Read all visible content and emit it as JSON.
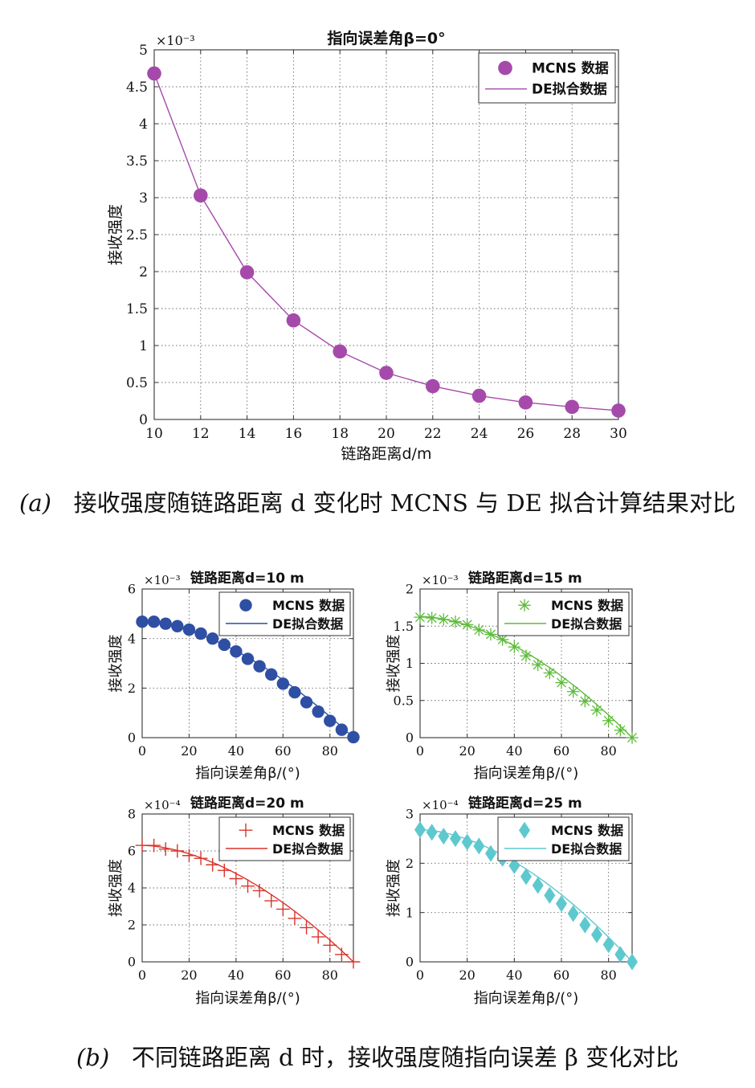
{
  "caption_a": {
    "label": "(a)",
    "text": "接收强度随链路距离 d 变化时 MCNS 与 DE 拟合计算结果对比"
  },
  "caption_b": {
    "label": "(b)",
    "text": "不同链路距离 d 时，接收强度随指向误差 β 变化对比"
  },
  "chart_data": [
    {
      "type": "line",
      "title": "指向误差角β=0°",
      "xlabel": "链路距离d/m",
      "ylabel": "接收强度",
      "exponent_label": "×10⁻³",
      "xlim": [
        10,
        30
      ],
      "ylim": [
        0,
        5
      ],
      "xticks": [
        10,
        12,
        14,
        16,
        18,
        20,
        22,
        24,
        26,
        28,
        30
      ],
      "yticks": [
        0,
        0.5,
        1,
        1.5,
        2,
        2.5,
        3,
        3.5,
        4,
        4.5,
        5
      ],
      "grid": true,
      "legend_position": "top-right",
      "color": "#a54aaa",
      "series": [
        {
          "name": "MCNS 数据",
          "marker": "dot",
          "x": [
            10,
            12,
            14,
            16,
            18,
            20,
            22,
            24,
            26,
            28,
            30
          ],
          "y": [
            4.68,
            3.03,
            1.99,
            1.34,
            0.92,
            0.63,
            0.45,
            0.32,
            0.23,
            0.17,
            0.12
          ]
        },
        {
          "name": "DE拟合数据",
          "marker": "line",
          "x": [
            10,
            12,
            14,
            16,
            18,
            20,
            22,
            24,
            26,
            28,
            30
          ],
          "y": [
            4.68,
            3.03,
            1.99,
            1.34,
            0.92,
            0.63,
            0.45,
            0.32,
            0.23,
            0.17,
            0.12
          ]
        }
      ]
    },
    {
      "type": "line",
      "title": "链路距离d=10 m",
      "xlabel": "指向误差角β/(°)",
      "ylabel": "接收强度",
      "exponent_label": "×10⁻³",
      "xlim": [
        0,
        90
      ],
      "ylim": [
        0,
        6
      ],
      "xticks": [
        0,
        20,
        40,
        60,
        80
      ],
      "yticks": [
        0,
        2,
        4,
        6
      ],
      "grid": true,
      "legend_position": "top-right",
      "color": "#2e4fa3",
      "series": [
        {
          "name": "MCNS 数据",
          "marker": "dot",
          "x": [
            0,
            5,
            10,
            15,
            20,
            25,
            30,
            35,
            40,
            45,
            50,
            55,
            60,
            65,
            70,
            75,
            80,
            85,
            90
          ],
          "y": [
            4.68,
            4.68,
            4.6,
            4.5,
            4.36,
            4.2,
            4.0,
            3.75,
            3.48,
            3.18,
            2.88,
            2.55,
            2.18,
            1.83,
            1.43,
            1.05,
            0.68,
            0.32,
            0.02
          ]
        },
        {
          "name": "DE拟合数据",
          "marker": "line",
          "curve": {
            "a": 4.68,
            "p": 1.7
          }
        }
      ]
    },
    {
      "type": "line",
      "title": "链路距离d=15 m",
      "xlabel": "指向误差角β/(°)",
      "ylabel": "接收强度",
      "exponent_label": "×10⁻³",
      "xlim": [
        0,
        90
      ],
      "ylim": [
        0,
        2
      ],
      "xticks": [
        0,
        20,
        40,
        60,
        80
      ],
      "yticks": [
        0,
        0.5,
        1,
        1.5,
        2
      ],
      "grid": true,
      "legend_position": "top-right",
      "color": "#5dbb3a",
      "series": [
        {
          "name": "MCNS 数据",
          "marker": "star",
          "x": [
            0,
            5,
            10,
            15,
            20,
            25,
            30,
            35,
            40,
            45,
            50,
            55,
            60,
            65,
            70,
            75,
            80,
            85,
            90
          ],
          "y": [
            1.62,
            1.61,
            1.59,
            1.56,
            1.52,
            1.45,
            1.39,
            1.32,
            1.22,
            1.1,
            0.98,
            0.87,
            0.74,
            0.62,
            0.49,
            0.37,
            0.23,
            0.1,
            0.0
          ]
        },
        {
          "name": "DE拟合数据",
          "marker": "line",
          "curve": {
            "a": 1.63,
            "p": 1.75
          }
        }
      ]
    },
    {
      "type": "line",
      "title": "链路距离d=20 m",
      "xlabel": "指向误差角β/(°)",
      "ylabel": "接收强度",
      "exponent_label": "×10⁻⁴",
      "xlim": [
        0,
        90
      ],
      "ylim": [
        0,
        8
      ],
      "xticks": [
        0,
        20,
        40,
        60,
        80
      ],
      "yticks": [
        0,
        2,
        4,
        6,
        8
      ],
      "grid": true,
      "legend_position": "top-right",
      "color": "#d9342b",
      "series": [
        {
          "name": "MCNS 数据",
          "marker": "plus",
          "x": [
            0,
            5,
            10,
            15,
            20,
            25,
            30,
            35,
            40,
            45,
            50,
            55,
            60,
            65,
            70,
            75,
            80,
            85,
            90
          ],
          "y": [
            6.3,
            6.3,
            6.1,
            6.0,
            5.75,
            5.6,
            5.25,
            4.95,
            4.5,
            4.1,
            3.85,
            3.3,
            2.85,
            2.35,
            1.85,
            1.35,
            0.9,
            0.4,
            0.0
          ]
        },
        {
          "name": "DE拟合数据",
          "marker": "line",
          "curve": {
            "a": 6.3,
            "p": 1.75
          }
        }
      ]
    },
    {
      "type": "line",
      "title": "链路距离d=25 m",
      "xlabel": "指向误差角β/(°)",
      "ylabel": "接收强度",
      "exponent_label": "×10⁻⁴",
      "xlim": [
        0,
        90
      ],
      "ylim": [
        0,
        3
      ],
      "xticks": [
        0,
        20,
        40,
        60,
        80
      ],
      "yticks": [
        0,
        1,
        2,
        3
      ],
      "grid": true,
      "legend_position": "top-right",
      "color": "#5ec8cf",
      "series": [
        {
          "name": "MCNS 数据",
          "marker": "diamond",
          "x": [
            0,
            5,
            10,
            15,
            20,
            25,
            30,
            35,
            40,
            45,
            50,
            55,
            60,
            65,
            70,
            75,
            80,
            85,
            90
          ],
          "y": [
            2.68,
            2.63,
            2.55,
            2.5,
            2.43,
            2.35,
            2.2,
            2.1,
            1.95,
            1.73,
            1.55,
            1.35,
            1.18,
            0.98,
            0.75,
            0.55,
            0.35,
            0.15,
            0.0
          ]
        },
        {
          "name": "DE拟合数据",
          "marker": "line",
          "curve": {
            "a": 2.68,
            "p": 1.75
          }
        }
      ]
    }
  ]
}
